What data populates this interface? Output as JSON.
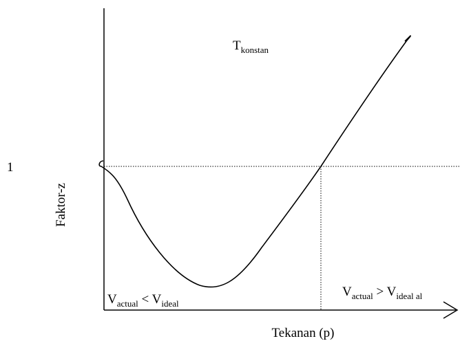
{
  "y_tick": "1",
  "y_label": "Faktor-z",
  "x_label": "Tekanan (p)",
  "condition": {
    "main": "T",
    "sub": "konstan"
  },
  "left_note": {
    "v1": "V",
    "s1": "actual",
    "mid": " < V",
    "s2": "ideal"
  },
  "right_note": {
    "v1": "V",
    "s1": "actual",
    "mid": " > V",
    "s2": "ideal al"
  }
}
